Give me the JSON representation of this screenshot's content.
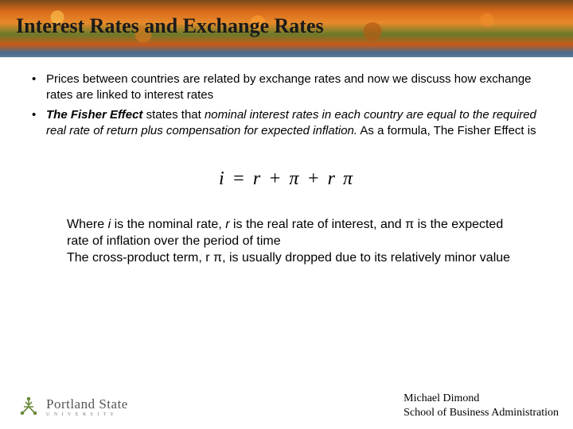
{
  "slide": {
    "title": "Interest Rates and Exchange Rates",
    "bullets": [
      {
        "prefix": "",
        "runs": [
          {
            "t": "Prices between countries are related by exchange rates and now we discuss how exchange rates are linked to interest rates",
            "cls": ""
          }
        ]
      },
      {
        "prefix": "",
        "runs": [
          {
            "t": "The Fisher Effect",
            "cls": "bold-italic"
          },
          {
            "t": " states that ",
            "cls": ""
          },
          {
            "t": "nominal interest rates in each country are equal to the required real rate of return plus compensation for expected inflation.",
            "cls": "italic"
          },
          {
            "t": "  As a formula, The Fisher Effect is",
            "cls": ""
          }
        ]
      }
    ],
    "formula": {
      "i": "i",
      "eq": " = ",
      "r1": "r",
      "plus1": "   +  ",
      "pi1": "π",
      "plus2": "  +  ",
      "r2": "r ",
      "pi2": "π"
    },
    "explain_runs": [
      {
        "t": "Where ",
        "cls": ""
      },
      {
        "t": "i",
        "cls": "italic"
      },
      {
        "t": " is the nominal rate, ",
        "cls": ""
      },
      {
        "t": "r",
        "cls": "italic"
      },
      {
        "t": " is the real rate of interest, and ",
        "cls": ""
      },
      {
        "t": "π",
        "cls": ""
      },
      {
        "t": " is the expected rate of inflation over the period of time",
        "cls": ""
      },
      {
        "t": "\nThe cross-product term, r ",
        "cls": ""
      },
      {
        "t": "π",
        "cls": ""
      },
      {
        "t": ",  is usually dropped due to its relatively minor value",
        "cls": ""
      }
    ]
  },
  "footer": {
    "logo_main": "Portland State",
    "logo_sub": "U  N  I  V  E  R  S  I  T  Y",
    "author": "Michael Dimond",
    "school": "School of Business Administration"
  },
  "style": {
    "title_color": "#1a1a1a",
    "body_color": "#000000",
    "background": "#ffffff",
    "header_gradient": [
      "#7a4a1a",
      "#d96b1a",
      "#e88a2a",
      "#6a7a2a",
      "#c85a1a",
      "#4a6a8a"
    ],
    "title_fontsize": 26,
    "bullet_fontsize": 15,
    "formula_fontsize": 24,
    "explain_fontsize": 16,
    "attribution_fontsize": 14
  }
}
